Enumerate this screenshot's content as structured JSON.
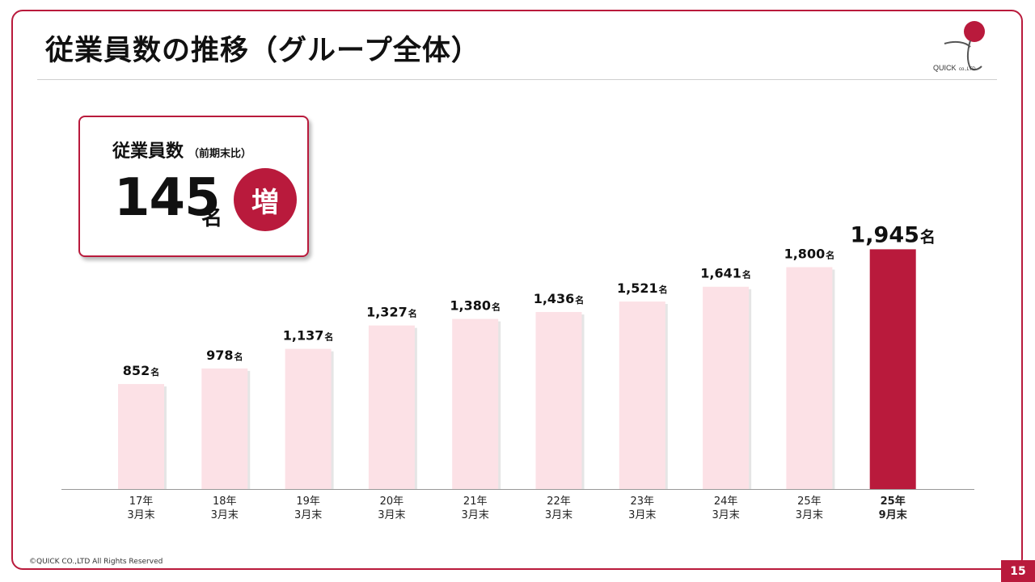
{
  "header": {
    "title": "従業員数の推移（グループ全体）"
  },
  "logo": {
    "text": "QUICK",
    "suffix": "co.,LTD"
  },
  "summary": {
    "label": "従業員数",
    "sub_label": "（前期末比）",
    "value": "145",
    "unit": "名",
    "badge": "増"
  },
  "colors": {
    "accent": "#b91a3c",
    "bar": "#fce1e6",
    "highlight_bar": "#b91a3c"
  },
  "chart_data": {
    "type": "bar",
    "title": "",
    "xlabel": "",
    "ylabel": "",
    "ylim": [
      0,
      2000
    ],
    "categories": [
      [
        "17年",
        "3月末"
      ],
      [
        "18年",
        "3月末"
      ],
      [
        "19年",
        "3月末"
      ],
      [
        "20年",
        "3月末"
      ],
      [
        "21年",
        "3月末"
      ],
      [
        "22年",
        "3月末"
      ],
      [
        "23年",
        "3月末"
      ],
      [
        "24年",
        "3月末"
      ],
      [
        "25年",
        "3月末"
      ],
      [
        "25年",
        "9月末"
      ]
    ],
    "values": [
      852,
      978,
      1137,
      1327,
      1380,
      1436,
      1521,
      1641,
      1800,
      1945
    ],
    "value_labels": [
      "852",
      "978",
      "1,137",
      "1,327",
      "1,380",
      "1,436",
      "1,521",
      "1,641",
      "1,800",
      "1,945"
    ],
    "unit": "名",
    "highlight_index": 9,
    "grid": false,
    "legend": "none"
  },
  "footer": {
    "copyright": "©QUICK CO.,LTD All Rights Reserved",
    "page_number": "15"
  }
}
